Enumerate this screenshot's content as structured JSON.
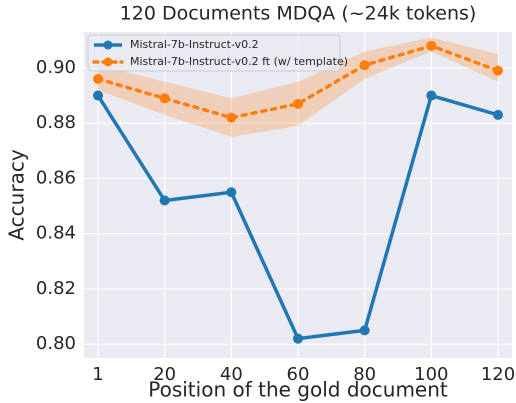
{
  "chart_data": {
    "type": "line",
    "title": "120 Documents MDQA (~24k tokens)",
    "x_label": "Position of the gold document",
    "y_label": "Accuracy",
    "categories": [
      "1",
      "20",
      "40",
      "60",
      "80",
      "100",
      "120"
    ],
    "series": [
      {
        "name": "Mistral-7b-Instruct-v0.2",
        "color": "#1f77b4",
        "dash": "solid",
        "values": [
          0.89,
          0.852,
          0.855,
          0.802,
          0.805,
          0.89,
          0.883
        ]
      },
      {
        "name": "Mistral-7b-Instruct-v0.2 ft (w/ template)",
        "color": "#ff7f0e",
        "dash": "dotted",
        "values": [
          0.896,
          0.889,
          0.882,
          0.887,
          0.901,
          0.908,
          0.899
        ],
        "lower": [
          0.892,
          0.883,
          0.875,
          0.879,
          0.896,
          0.906,
          0.895
        ],
        "upper": [
          0.901,
          0.895,
          0.889,
          0.895,
          0.906,
          0.911,
          0.905
        ]
      }
    ],
    "ylim": [
      0.795,
      0.913
    ],
    "yticks": [
      {
        "value": 0.8,
        "label": "0.80"
      },
      {
        "value": 0.82,
        "label": "0.82"
      },
      {
        "value": 0.84,
        "label": "0.84"
      },
      {
        "value": 0.86,
        "label": "0.86"
      },
      {
        "value": 0.88,
        "label": "0.88"
      },
      {
        "value": 0.9,
        "label": "0.90"
      }
    ],
    "grid": true,
    "legend": "upper left"
  }
}
